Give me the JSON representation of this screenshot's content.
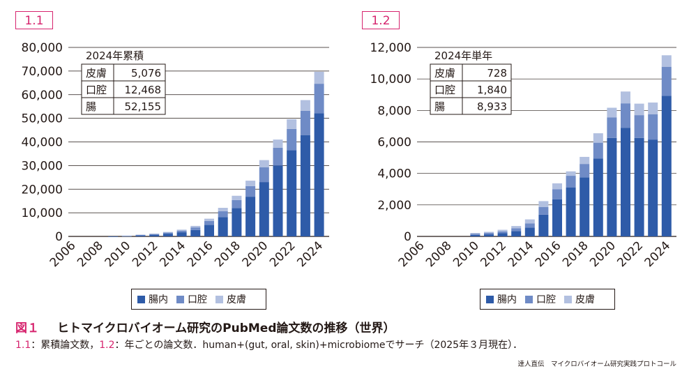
{
  "chart_data": [
    {
      "id": "1.1",
      "type": "bar",
      "stacked": true,
      "title": "1.1",
      "years": [
        2006,
        2007,
        2008,
        2009,
        2010,
        2011,
        2012,
        2013,
        2014,
        2015,
        2016,
        2017,
        2018,
        2019,
        2020,
        2021,
        2022,
        2023,
        2024
      ],
      "series": [
        {
          "name": "腸内",
          "color": "#2e5ba8",
          "values": [
            0,
            0,
            0,
            20,
            200,
            450,
            700,
            1150,
            1750,
            2700,
            4850,
            8200,
            12000,
            16800,
            23000,
            30000,
            36500,
            42900,
            52155
          ]
        },
        {
          "name": "口腔",
          "color": "#6f8bc6",
          "values": [
            0,
            0,
            0,
            0,
            80,
            180,
            300,
            450,
            700,
            1100,
            1700,
            2500,
            3400,
            4500,
            6300,
            7500,
            9000,
            10300,
            12468
          ]
        },
        {
          "name": "皮膚",
          "color": "#b2c0e0",
          "values": [
            0,
            0,
            0,
            0,
            80,
            130,
            200,
            300,
            420,
            650,
            950,
            1400,
            1800,
            2300,
            3000,
            3500,
            4100,
            4500,
            5076
          ]
        }
      ],
      "y_ticks": [
        "0",
        "10,000",
        "20,000",
        "30,000",
        "40,000",
        "50,000",
        "60,000",
        "70,000",
        "80,000"
      ],
      "x_ticks": [
        "2006",
        "2008",
        "2010",
        "2012",
        "2014",
        "2016",
        "2018",
        "2020",
        "2022",
        "2024"
      ],
      "ylim": [
        0,
        80000
      ],
      "inset": {
        "title": "2024年累積",
        "rows": [
          [
            "皮膚",
            "5,076"
          ],
          [
            "口腔",
            "12,468"
          ],
          [
            "腸",
            "52,155"
          ]
        ]
      }
    },
    {
      "id": "1.2",
      "type": "bar",
      "stacked": true,
      "title": "1.2",
      "years": [
        2006,
        2007,
        2008,
        2009,
        2010,
        2011,
        2012,
        2013,
        2014,
        2015,
        2016,
        2017,
        2018,
        2019,
        2020,
        2021,
        2022,
        2023,
        2024
      ],
      "series": [
        {
          "name": "腸内",
          "color": "#2e5ba8",
          "values": [
            0,
            0,
            0,
            0,
            100,
            130,
            200,
            330,
            560,
            1380,
            2350,
            3100,
            3750,
            4950,
            6250,
            6900,
            6250,
            6150,
            8933
          ]
        },
        {
          "name": "口腔",
          "color": "#6f8bc6",
          "values": [
            0,
            0,
            0,
            0,
            70,
            90,
            120,
            180,
            270,
            480,
            650,
            750,
            850,
            1000,
            1300,
            1550,
            1450,
            1600,
            1840
          ]
        },
        {
          "name": "皮膚",
          "color": "#b2c0e0",
          "values": [
            0,
            0,
            0,
            0,
            50,
            70,
            100,
            150,
            250,
            380,
            370,
            280,
            450,
            600,
            620,
            750,
            730,
            750,
            728
          ]
        }
      ],
      "y_ticks": [
        "0",
        "2,000",
        "4,000",
        "6,000",
        "8,000",
        "10,000",
        "12,000"
      ],
      "x_ticks": [
        "2006",
        "2008",
        "2010",
        "2012",
        "2014",
        "2016",
        "2018",
        "2020",
        "2022",
        "2024"
      ],
      "ylim": [
        0,
        12000
      ],
      "inset": {
        "title": "2024年単年",
        "rows": [
          [
            "皮膚",
            "728"
          ],
          [
            "口腔",
            "1,840"
          ],
          [
            "腸",
            "8,933"
          ]
        ]
      }
    }
  ],
  "legend": [
    "腸内",
    "口腔",
    "皮膚"
  ],
  "legend_colors": [
    "#2e5ba8",
    "#6f8bc6",
    "#b2c0e0"
  ],
  "caption": {
    "figure_label": "図１",
    "title": "ヒトマイクロバイオーム研究のPubMed論文数の推移（世界）",
    "sub_label_1": "1.1",
    "sub_text_1": "：累積論文数，",
    "sub_label_2": "1.2",
    "sub_text_2": "：年ごとの論文数．human+(gut, oral, skin)+microbiomeでサーチ（2025年３月現在）．"
  },
  "footer": "達人直伝　マイクロバイオーム研究実践プロトコール"
}
